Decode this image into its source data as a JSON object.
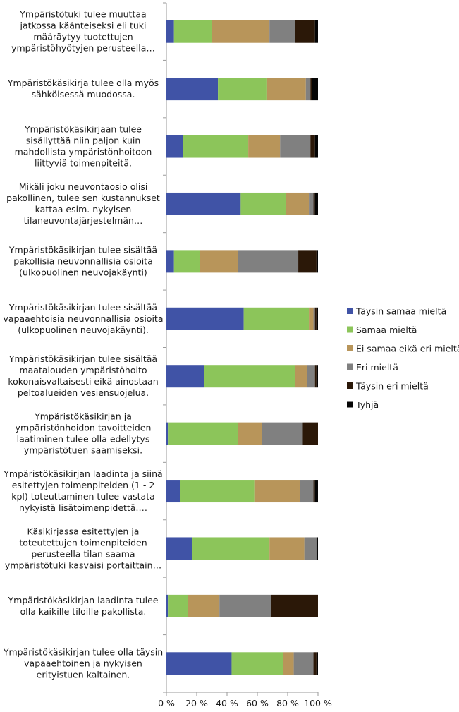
{
  "chart_data": {
    "type": "bar",
    "orientation": "horizontal",
    "stacked": "percent",
    "xlim": [
      0,
      100
    ],
    "x_ticks": [
      "0 %",
      "20 %",
      "40 %",
      "60 %",
      "80 %",
      "100 %"
    ],
    "grid": false,
    "legend_position": "right",
    "categories": [
      [
        "Ympäristötuki tulee muuttaa",
        "jatkossa käänteiseksi eli tuki",
        "määräytyy tuotettujen",
        "ympäristöhyötyjen perusteella…"
      ],
      [
        "Ympäristökäsikirja tulee olla myös",
        "sähköisessä muodossa."
      ],
      [
        "Ympäristökäsikirjaan tulee",
        "sisällyttää niin paljon kuin",
        "mahdollista ympäristönhoitoon",
        "liittyviä toimenpiteitä."
      ],
      [
        "Mikäli joku neuvontaosio olisi",
        "pakollinen, tulee sen kustannukset",
        "kattaa esim. nykyisen",
        "tilaneuvontajärjestelmän…"
      ],
      [
        "Ympäristökäsikirjan tulee sisältää",
        "pakollisia neuvonnallisia osioita",
        "(ulkopuolinen neuvojakäynti)"
      ],
      [
        "Ympäristökäsikirjan tulee sisältää",
        "vapaaehtoisia neuvonnallisia osioita",
        "(ulkopuolinen neuvojakäynti)."
      ],
      [
        "Ympäristökäsikirjan tulee sisältää",
        "maatalouden ympäristöhoito",
        "kokonaisvaltaisesti eikä ainostaan",
        "peltoalueiden vesiensuojelua."
      ],
      [
        "Ympäristökäsikirjan ja",
        "ympäristönhoidon tavoitteiden",
        "laatiminen tulee olla edellytys",
        "ympäristötuen saamiseksi."
      ],
      [
        "Ympäristökäsikirjan laadinta ja siinä",
        "esitettyjen toimenpiteiden (1 - 2",
        "kpl) toteuttaminen tulee vastata",
        "nykyistä lisätoimenpidettä.…"
      ],
      [
        "Käsikirjassa esitettyjen ja",
        "toteutettujen toimenpiteiden",
        "perusteella tilan saama",
        "ympäristötuki kasvaisi portaittain…"
      ],
      [
        "Ympäristökäsikirjan laadinta tulee",
        "olla kaikille tiloille pakollista."
      ],
      [
        "Ympäristökäsikirjan tulee olla täysin",
        "vapaaehtoinen ja nykyisen",
        "erityistuen kaltainen."
      ]
    ],
    "series": [
      {
        "name": "Täysin samaa mieltä",
        "color": "#4053a6",
        "values": [
          5,
          34,
          11,
          49,
          5,
          51,
          25,
          1,
          9,
          17,
          1,
          43
        ]
      },
      {
        "name": "Samaa mieltä",
        "color": "#8cc55a",
        "values": [
          25,
          32,
          43,
          30,
          17,
          43,
          60,
          46,
          49,
          51,
          13,
          34
        ]
      },
      {
        "name": "Ei samaa eikä eri mieltä",
        "color": "#b8955a",
        "values": [
          38,
          26,
          21,
          15,
          25,
          3,
          8,
          16,
          30,
          23,
          21,
          7
        ]
      },
      {
        "name": "Eri mieltä",
        "color": "#808080",
        "values": [
          17,
          3,
          20,
          3,
          40,
          1,
          5,
          27,
          9,
          8,
          34,
          13
        ]
      },
      {
        "name": "Täysin eri mieltä",
        "color": "#2b1808",
        "values": [
          13,
          1,
          3,
          1,
          12,
          1,
          1,
          10,
          1,
          0,
          31,
          2
        ]
      },
      {
        "name": "Tyhjä",
        "color": "#050505",
        "values": [
          2,
          4,
          2,
          2,
          1,
          1,
          1,
          0,
          2,
          1,
          0,
          1
        ]
      }
    ]
  }
}
